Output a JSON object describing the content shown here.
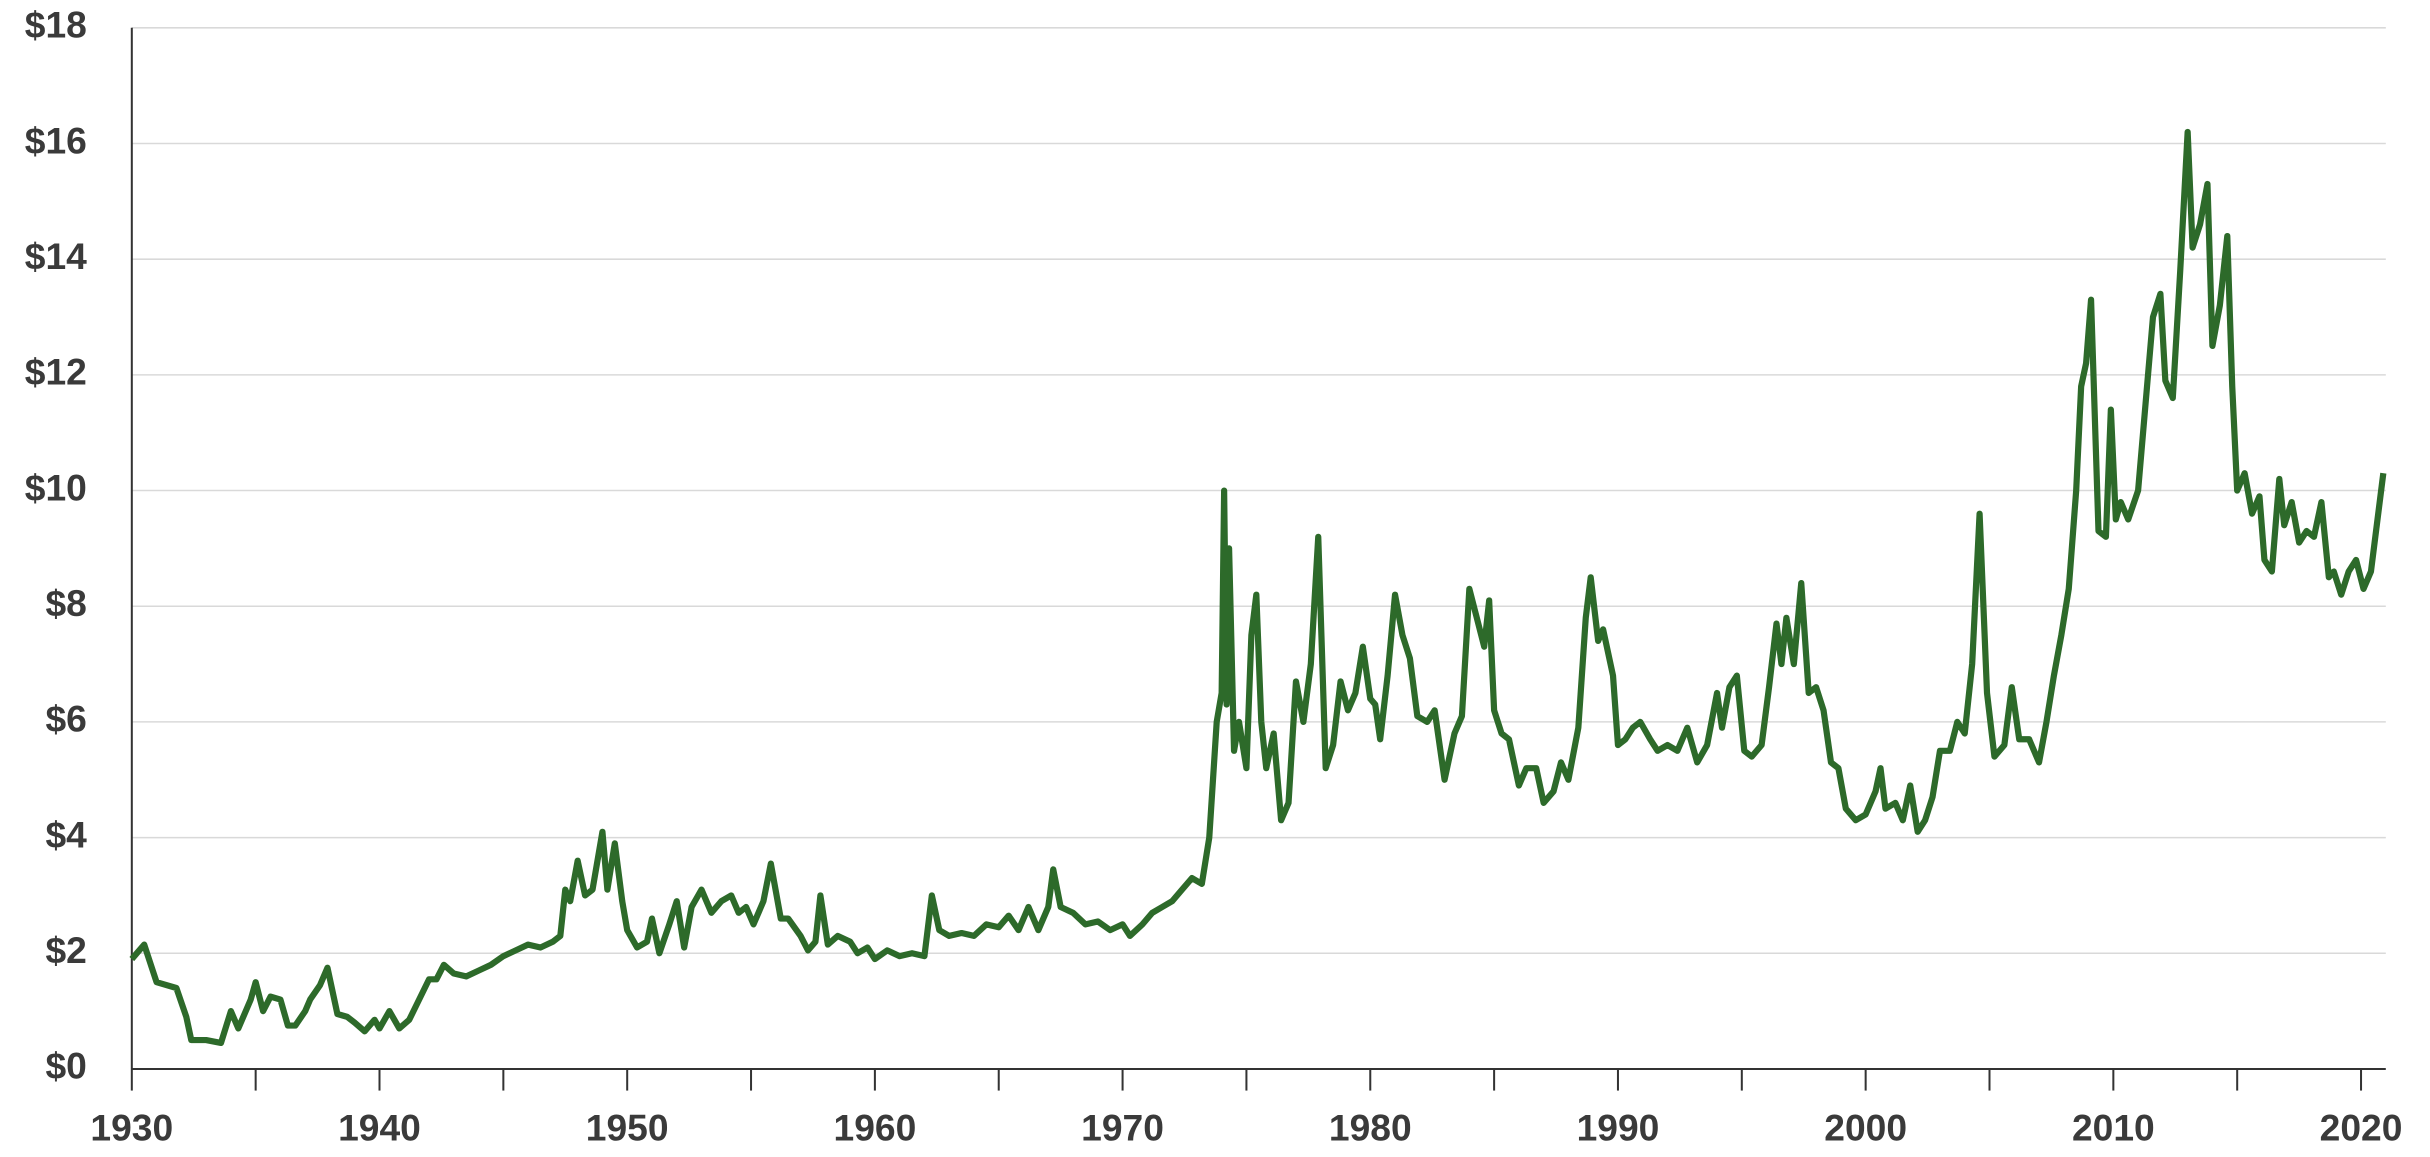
{
  "chart_data": {
    "type": "line",
    "x": [
      1930,
      1930.5,
      1931,
      1931.8,
      1932.2,
      1932.4,
      1933,
      1933.6,
      1934,
      1934.3,
      1934.8,
      1935,
      1935.3,
      1935.6,
      1936,
      1936.3,
      1936.6,
      1937,
      1937.2,
      1937.6,
      1937.9,
      1938.3,
      1938.7,
      1939,
      1939.4,
      1939.8,
      1940,
      1940.4,
      1940.8,
      1941.2,
      1941.6,
      1942,
      1942.3,
      1942.6,
      1943,
      1943.5,
      1944,
      1944.5,
      1945,
      1945.5,
      1946,
      1946.5,
      1947,
      1947.3,
      1947.5,
      1947.7,
      1948,
      1948.3,
      1948.6,
      1949,
      1949.2,
      1949.5,
      1949.8,
      1950,
      1950.4,
      1950.8,
      1951,
      1951.3,
      1951.7,
      1952,
      1952.3,
      1952.6,
      1953,
      1953.4,
      1953.8,
      1954.2,
      1954.5,
      1954.8,
      1955.1,
      1955.5,
      1955.8,
      1956.2,
      1956.5,
      1957,
      1957.3,
      1957.6,
      1957.8,
      1958.1,
      1958.5,
      1959,
      1959.3,
      1959.7,
      1960,
      1960.5,
      1961,
      1961.5,
      1962,
      1962.3,
      1962.6,
      1963,
      1963.5,
      1964,
      1964.5,
      1965,
      1965.4,
      1965.8,
      1966.2,
      1966.6,
      1967,
      1967.2,
      1967.5,
      1968,
      1968.5,
      1969,
      1969.5,
      1970,
      1970.3,
      1970.8,
      1971.2,
      1971.6,
      1972,
      1972.4,
      1972.8,
      1973.2,
      1973.5,
      1973.8,
      1974,
      1974.1,
      1974.2,
      1974.3,
      1974.5,
      1974.7,
      1975,
      1975.2,
      1975.4,
      1975.6,
      1975.8,
      1976.1,
      1976.4,
      1976.7,
      1977,
      1977.3,
      1977.6,
      1977.9,
      1978.2,
      1978.5,
      1978.8,
      1979.1,
      1979.4,
      1979.7,
      1980,
      1980.2,
      1980.4,
      1980.7,
      1981,
      1981.3,
      1981.6,
      1981.9,
      1982.3,
      1982.6,
      1983,
      1983.4,
      1983.7,
      1984,
      1984.3,
      1984.6,
      1984.8,
      1985,
      1985.3,
      1985.6,
      1986,
      1986.3,
      1986.7,
      1987,
      1987.4,
      1987.7,
      1988,
      1988.4,
      1988.7,
      1988.9,
      1989.2,
      1989.4,
      1989.8,
      1990,
      1990.3,
      1990.6,
      1990.9,
      1991.3,
      1991.6,
      1992,
      1992.4,
      1992.8,
      1993.2,
      1993.6,
      1994,
      1994.2,
      1994.5,
      1994.8,
      1995.1,
      1995.4,
      1995.8,
      1996.1,
      1996.4,
      1996.6,
      1996.8,
      1997.1,
      1997.4,
      1997.7,
      1998,
      1998.3,
      1998.6,
      1998.9,
      1999.2,
      1999.6,
      2000,
      2000.4,
      2000.6,
      2000.8,
      2001.2,
      2001.5,
      2001.8,
      2002.1,
      2002.4,
      2002.7,
      2003,
      2003.4,
      2003.7,
      2004,
      2004.3,
      2004.6,
      2004.9,
      2005.2,
      2005.6,
      2005.9,
      2006.2,
      2006.6,
      2007,
      2007.3,
      2007.6,
      2007.9,
      2008.2,
      2008.5,
      2008.7,
      2008.9,
      2009.1,
      2009.4,
      2009.7,
      2009.9,
      2010.1,
      2010.3,
      2010.6,
      2011,
      2011.3,
      2011.6,
      2011.9,
      2012.1,
      2012.4,
      2012.7,
      2013,
      2013.2,
      2013.5,
      2013.8,
      2014,
      2014.3,
      2014.6,
      2014.8,
      2015,
      2015.3,
      2015.6,
      2015.9,
      2016.1,
      2016.4,
      2016.7,
      2016.9,
      2017.2,
      2017.5,
      2017.8,
      2018.1,
      2018.4,
      2018.7,
      2018.9,
      2019.2,
      2019.5,
      2019.8,
      2020.1,
      2020.4,
      2020.9
    ],
    "series": [
      {
        "color": "#2d6a2a",
        "values": [
          1.9,
          2.15,
          1.5,
          1.4,
          0.9,
          0.5,
          0.5,
          0.45,
          1.0,
          0.7,
          1.2,
          1.5,
          1.0,
          1.25,
          1.2,
          0.75,
          0.75,
          1.0,
          1.2,
          1.45,
          1.75,
          0.95,
          0.9,
          0.8,
          0.65,
          0.85,
          0.7,
          1.0,
          0.7,
          0.85,
          1.2,
          1.55,
          1.55,
          1.8,
          1.65,
          1.6,
          1.7,
          1.8,
          1.95,
          2.05,
          2.15,
          2.1,
          2.2,
          2.3,
          3.1,
          2.9,
          3.6,
          3.0,
          3.1,
          4.1,
          3.1,
          3.9,
          2.9,
          2.4,
          2.1,
          2.2,
          2.6,
          2.0,
          2.5,
          2.9,
          2.1,
          2.8,
          3.1,
          2.7,
          2.9,
          3.0,
          2.7,
          2.8,
          2.5,
          2.9,
          3.55,
          2.6,
          2.6,
          2.3,
          2.05,
          2.2,
          3.0,
          2.15,
          2.3,
          2.2,
          2.0,
          2.1,
          1.9,
          2.05,
          1.95,
          2.0,
          1.95,
          3.0,
          2.4,
          2.3,
          2.35,
          2.3,
          2.5,
          2.45,
          2.65,
          2.4,
          2.8,
          2.4,
          2.8,
          3.45,
          2.8,
          2.7,
          2.5,
          2.55,
          2.4,
          2.5,
          2.3,
          2.5,
          2.7,
          2.8,
          2.9,
          3.1,
          3.3,
          3.2,
          4.0,
          6.0,
          6.5,
          10.0,
          6.3,
          9.0,
          5.5,
          6.0,
          5.2,
          7.5,
          8.2,
          6.0,
          5.2,
          5.8,
          4.3,
          4.6,
          6.7,
          6.0,
          7.0,
          9.2,
          5.2,
          5.6,
          6.7,
          6.2,
          6.5,
          7.3,
          6.4,
          6.3,
          5.7,
          6.8,
          8.2,
          7.5,
          7.1,
          6.1,
          6.0,
          6.2,
          5.0,
          5.8,
          6.1,
          8.3,
          7.8,
          7.3,
          8.1,
          6.2,
          5.8,
          5.7,
          4.9,
          5.2,
          5.2,
          4.6,
          4.8,
          5.3,
          5.0,
          5.9,
          7.8,
          8.5,
          7.4,
          7.6,
          6.8,
          5.6,
          5.7,
          5.9,
          6.0,
          5.7,
          5.5,
          5.6,
          5.5,
          5.9,
          5.3,
          5.6,
          6.5,
          5.9,
          6.6,
          6.8,
          5.5,
          5.4,
          5.6,
          6.6,
          7.7,
          7.0,
          7.8,
          7.0,
          8.4,
          6.5,
          6.6,
          6.2,
          5.3,
          5.2,
          4.5,
          4.3,
          4.4,
          4.8,
          5.2,
          4.5,
          4.6,
          4.3,
          4.9,
          4.1,
          4.3,
          4.7,
          5.5,
          5.5,
          6.0,
          5.8,
          7.0,
          9.6,
          6.5,
          5.4,
          5.6,
          6.6,
          5.7,
          5.7,
          5.3,
          6.0,
          6.8,
          7.5,
          8.3,
          10.0,
          11.8,
          12.2,
          13.3,
          9.3,
          9.2,
          11.4,
          9.5,
          9.8,
          9.5,
          10.0,
          11.5,
          13.0,
          13.4,
          11.9,
          11.6,
          13.8,
          16.2,
          14.2,
          14.6,
          15.3,
          12.5,
          13.2,
          14.4,
          11.8,
          10.0,
          10.3,
          9.6,
          9.9,
          8.8,
          8.6,
          10.2,
          9.4,
          9.8,
          9.1,
          9.3,
          9.2,
          9.8,
          8.5,
          8.6,
          8.2,
          8.6,
          8.8,
          8.3,
          8.6,
          10.3
        ]
      }
    ],
    "xlim": [
      1930,
      2021
    ],
    "xticks": [
      1930,
      1940,
      1950,
      1960,
      1970,
      1980,
      1990,
      2000,
      2010,
      2020
    ],
    "xminorticks": [
      1935,
      1945,
      1955,
      1965,
      1975,
      1985,
      1995,
      2005,
      2015
    ],
    "ylim": [
      0,
      18
    ],
    "yticks": [
      {
        "value": 0,
        "label": "$0"
      },
      {
        "value": 2,
        "label": "$2"
      },
      {
        "value": 4,
        "label": "$4"
      },
      {
        "value": 6,
        "label": "$6"
      },
      {
        "value": 8,
        "label": "$8"
      },
      {
        "value": 10,
        "label": "$10"
      },
      {
        "value": 12,
        "label": "$12"
      },
      {
        "value": 14,
        "label": "$14"
      },
      {
        "value": 16,
        "label": "$16"
      },
      {
        "value": 18,
        "label": "$18"
      }
    ],
    "grid": true
  }
}
